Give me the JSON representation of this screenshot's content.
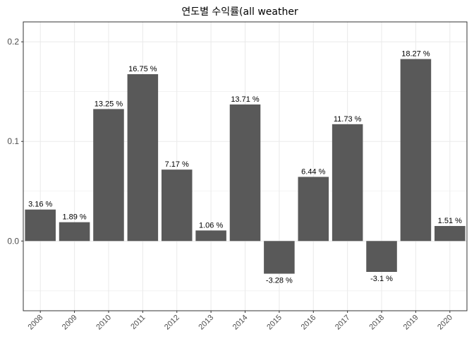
{
  "chart_data": {
    "type": "bar",
    "title": "연도별 수익률(all weather",
    "xlabel": "",
    "ylabel": "",
    "categories": [
      "2008",
      "2009",
      "2010",
      "2011",
      "2012",
      "2013",
      "2014",
      "2015",
      "2016",
      "2017",
      "2018",
      "2019",
      "2020"
    ],
    "values": [
      0.0316,
      0.0189,
      0.1325,
      0.1675,
      0.0717,
      0.0106,
      0.1371,
      -0.0328,
      0.0644,
      0.1173,
      -0.031,
      0.1827,
      0.0151
    ],
    "data_labels": [
      "3.16 %",
      "1.89 %",
      "13.25 %",
      "16.75 %",
      "7.17 %",
      "1.06 %",
      "13.71 %",
      "-3.28 %",
      "6.44 %",
      "11.73 %",
      "-3.1 %",
      "18.27 %",
      "1.51 %"
    ],
    "y_ticks": [
      0.0,
      0.1,
      0.2
    ],
    "y_tick_labels": [
      "0.0",
      "0.1",
      "0.2"
    ],
    "ylim": [
      -0.07,
      0.22
    ],
    "grid": true,
    "bar_color": "#595959",
    "grid_color": "#ebebeb",
    "panel_border_color": "#333333"
  }
}
